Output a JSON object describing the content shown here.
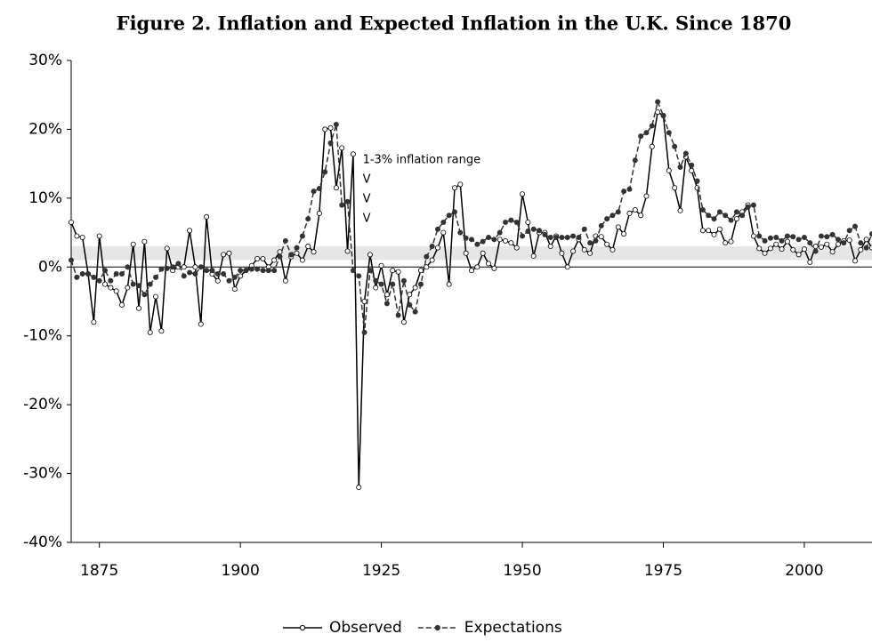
{
  "chart_data": {
    "type": "line",
    "title": "Figure 2. Inflation and Expected Inflation in the U.K. Since 1870",
    "annotations": [
      "1-3% inflation range",
      "V",
      "V",
      "V"
    ],
    "shaded_range": [
      1,
      3
    ],
    "legend": "bottom",
    "xlim": [
      1870,
      2012
    ],
    "xticks": [
      1875,
      1900,
      1925,
      1950,
      1975,
      2000
    ],
    "ylim": [
      -40,
      30
    ],
    "yticks": [
      {
        "value": -40,
        "label": "-40%"
      },
      {
        "value": -30,
        "label": "-30%"
      },
      {
        "value": -20,
        "label": "-20%"
      },
      {
        "value": -10,
        "label": "-10%"
      },
      {
        "value": 0,
        "label": "0%"
      },
      {
        "value": 10,
        "label": "10%"
      },
      {
        "value": 20,
        "label": "20%"
      },
      {
        "value": 30,
        "label": "30%"
      }
    ],
    "x": [
      1870,
      1871,
      1872,
      1873,
      1874,
      1875,
      1876,
      1877,
      1878,
      1879,
      1880,
      1881,
      1882,
      1883,
      1884,
      1885,
      1886,
      1887,
      1888,
      1889,
      1890,
      1891,
      1892,
      1893,
      1894,
      1895,
      1896,
      1897,
      1898,
      1899,
      1900,
      1901,
      1902,
      1903,
      1904,
      1905,
      1906,
      1907,
      1908,
      1909,
      1910,
      1911,
      1912,
      1913,
      1914,
      1915,
      1916,
      1917,
      1918,
      1919,
      1920,
      1921,
      1922,
      1923,
      1924,
      1925,
      1926,
      1927,
      1928,
      1929,
      1930,
      1931,
      1932,
      1933,
      1934,
      1935,
      1936,
      1937,
      1938,
      1939,
      1940,
      1941,
      1942,
      1943,
      1944,
      1945,
      1946,
      1947,
      1948,
      1949,
      1950,
      1951,
      1952,
      1953,
      1954,
      1955,
      1956,
      1957,
      1958,
      1959,
      1960,
      1961,
      1962,
      1963,
      1964,
      1965,
      1966,
      1967,
      1968,
      1969,
      1970,
      1971,
      1972,
      1973,
      1974,
      1975,
      1976,
      1977,
      1978,
      1979,
      1980,
      1981,
      1982,
      1983,
      1984,
      1985,
      1986,
      1987,
      1988,
      1989,
      1990,
      1991,
      1992,
      1993,
      1994,
      1995,
      1996,
      1997,
      1998,
      1999,
      2000,
      2001,
      2002,
      2003,
      2004,
      2005,
      2006,
      2007,
      2008,
      2009,
      2010,
      2011,
      2012
    ],
    "series": [
      {
        "name": "Observed",
        "color": "#000000",
        "style": "solid",
        "marker_fill": "#ffffff",
        "values": [
          6.5,
          4.5,
          4.3,
          -1,
          -8,
          4.5,
          -2.5,
          -3,
          -3.5,
          -5.5,
          -3,
          3.3,
          -6,
          3.7,
          -9.5,
          -4.3,
          -9.3,
          2.7,
          -0.5,
          0,
          0,
          5.3,
          0,
          -8.3,
          7.3,
          -1,
          -2,
          1.8,
          2,
          -3.2,
          -1.3,
          -0.5,
          0.2,
          1.2,
          1.2,
          0,
          1,
          2.2,
          -2,
          1.5,
          2,
          1,
          3,
          2.2,
          7.8,
          20,
          20.2,
          11.5,
          17.3,
          2.3,
          16.4,
          -32,
          -5,
          1.8,
          -3,
          0.2,
          -4,
          -0.5,
          -0.7,
          -8,
          -4,
          -3,
          -0.5,
          0,
          1,
          2.8,
          5,
          -2.5,
          11.5,
          12,
          2,
          -0.5,
          0,
          2,
          0.5,
          -0.2,
          4,
          3.8,
          3.5,
          2.8,
          10.6,
          6.5,
          1.6,
          5,
          5,
          3,
          4.5,
          2,
          0,
          2.3,
          4,
          2.5,
          2,
          4.5,
          4.4,
          3.3,
          2.5,
          5.8,
          4.8,
          7.8,
          8.3,
          7.5,
          10.3,
          17.5,
          22.5,
          22,
          14,
          11.5,
          8.2,
          16,
          14,
          11.5,
          5.3,
          5.3,
          4.7,
          5.5,
          3.5,
          3.7,
          7,
          8,
          9,
          4.5,
          2.7,
          2,
          2.7,
          3.3,
          2.6,
          3.7,
          2.5,
          1.8,
          2.6,
          0.7,
          3,
          2.9,
          3.3,
          2.2,
          3.3,
          3.8,
          3.9,
          0.9,
          2.5,
          4,
          2.8
        ]
      },
      {
        "name": "Expectations",
        "color": "#333333",
        "style": "dashed",
        "marker_fill": "#333333",
        "values": [
          1,
          -1.5,
          -1,
          -1,
          -1.5,
          -2,
          -0.5,
          -2,
          -1,
          -1,
          0,
          -2.5,
          -2.7,
          -4,
          -2.5,
          -1.5,
          -0.3,
          -0.2,
          0,
          0.5,
          -1.3,
          -0.8,
          -1,
          0,
          -0.5,
          -0.5,
          -1,
          -1,
          -2,
          -1.5,
          -0.5,
          -0.5,
          -0.3,
          -0.3,
          -0.5,
          -0.5,
          -0.5,
          1.5,
          3.8,
          1.8,
          2.8,
          4.5,
          7,
          11,
          11.4,
          13.8,
          18,
          20.7,
          9,
          9.5,
          -0.5,
          -1.3,
          -9.5,
          -0.5,
          -2,
          -2.5,
          -5.3,
          -2.5,
          -7,
          -2,
          -5.5,
          -6.5,
          -2.5,
          1.5,
          3,
          5.5,
          6.5,
          7.5,
          8,
          5,
          4.2,
          4,
          3.3,
          3.7,
          4.3,
          4,
          5,
          6.5,
          6.8,
          6.5,
          4.5,
          5.2,
          5.5,
          5.3,
          4.7,
          4.3,
          4.3,
          4.3,
          4.3,
          4.5,
          4.3,
          5.5,
          3.5,
          3.8,
          6,
          7,
          7.5,
          8,
          11,
          11.3,
          15.5,
          19,
          19.5,
          20.5,
          24,
          22,
          19.5,
          17.5,
          14.5,
          16.5,
          14.8,
          12.5,
          8.3,
          7.5,
          7,
          8,
          7.5,
          6.8,
          8,
          7.5,
          8.7,
          9,
          4.5,
          3.8,
          4.2,
          4.3,
          3.8,
          4.5,
          4.4,
          4,
          4.3,
          3.5,
          2.3,
          4.5,
          4.4,
          4.7,
          4,
          3.5,
          5.3,
          5.9,
          3.5,
          2.8,
          4.8
        ]
      }
    ]
  }
}
